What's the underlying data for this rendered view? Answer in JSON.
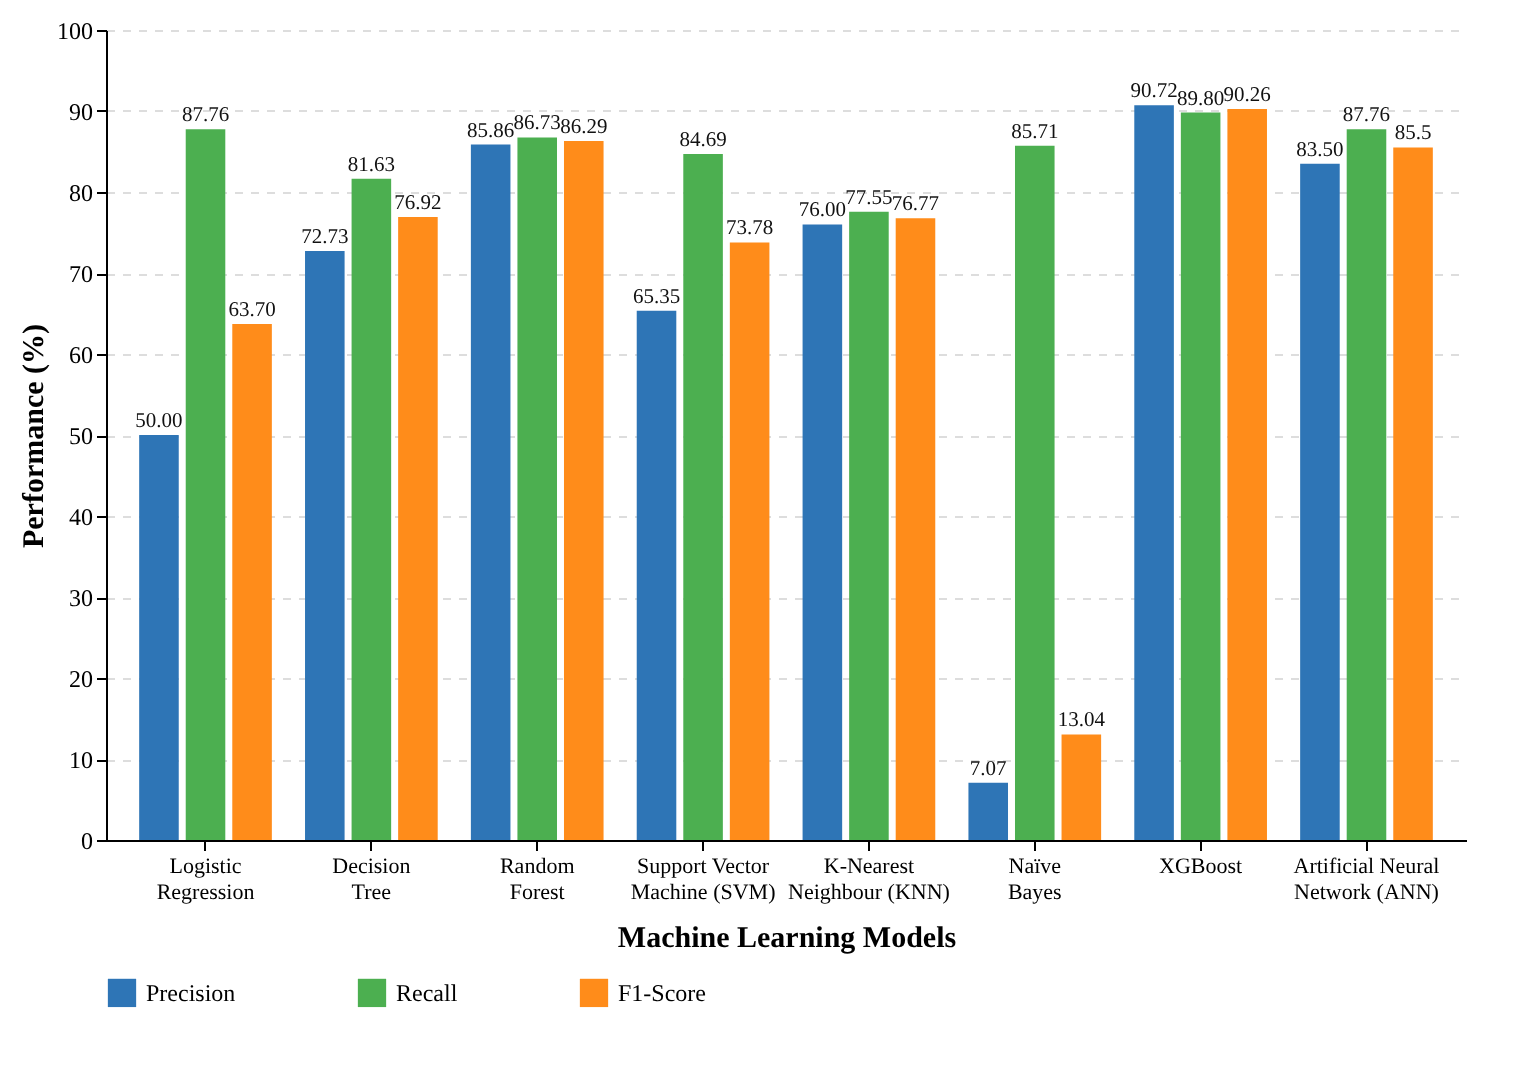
{
  "chart_data": {
    "type": "bar",
    "xlabel": "Machine Learning Models",
    "ylabel": "Performance (%)",
    "categories": [
      "Logistic\nRegression",
      "Decision\nTree",
      "Random\nForest",
      "Support Vector\nMachine (SVM)",
      "K-Nearest\nNeighbour (KNN)",
      "Naïve\nBayes",
      "XGBoost",
      "Artificial Neural\nNetwork (ANN)"
    ],
    "series": [
      {
        "name": "Precision",
        "color": "#2e75b6",
        "values": [
          50.0,
          72.73,
          85.86,
          65.35,
          76.0,
          7.07,
          90.72,
          83.5
        ],
        "value_labels": [
          "50.00",
          "72.73",
          "85.86",
          "65.35",
          "76.00",
          "7.07",
          "90.72",
          "83.50"
        ]
      },
      {
        "name": "Recall",
        "color": "#4caf50",
        "values": [
          87.76,
          81.63,
          86.73,
          84.69,
          77.55,
          85.71,
          89.8,
          87.76
        ],
        "value_labels": [
          "87.76",
          "81.63",
          "86.73",
          "84.69",
          "77.55",
          "85.71",
          "89.80",
          "87.76"
        ]
      },
      {
        "name": "F1-Score",
        "color": "#ff8c1a",
        "values": [
          63.7,
          76.92,
          86.29,
          73.78,
          76.77,
          13.04,
          90.26,
          85.5
        ],
        "value_labels": [
          "63.70",
          "76.92",
          "86.29",
          "73.78",
          "76.77",
          "13.04",
          "90.26",
          "85.5"
        ]
      }
    ],
    "ylim": [
      0,
      100
    ],
    "yticks": [
      0,
      10,
      20,
      30,
      40,
      50,
      60,
      70,
      80,
      90,
      100
    ],
    "grid": "y",
    "legend": "bottom"
  }
}
